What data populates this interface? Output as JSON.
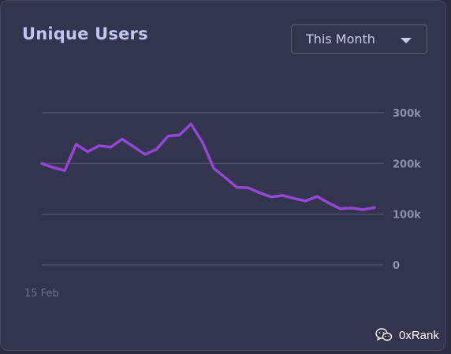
{
  "card": {
    "title": "Unique Users",
    "period_select": {
      "value": "This Month"
    }
  },
  "watermark": {
    "text": "0xRank",
    "icon": "wechat-icon"
  },
  "colors": {
    "line": "#9446d4",
    "grid": "#53566f",
    "card_bg": "#33344d"
  },
  "chart_data": {
    "type": "line",
    "title": "Unique Users",
    "x_tick_labels": [
      "15 Feb"
    ],
    "y_tick_labels": [
      "300k",
      "200k",
      "100k",
      "0"
    ],
    "y_ticks": [
      300000,
      200000,
      100000,
      0
    ],
    "ylim": [
      0,
      300000
    ],
    "grid": true,
    "y_axis_side": "right",
    "series": [
      {
        "values": [
          200000,
          192000,
          186000,
          238000,
          223000,
          235000,
          232000,
          248000,
          233000,
          218000,
          228000,
          254000,
          256000,
          278000,
          242000,
          190000,
          172000,
          153000,
          152000,
          142000,
          134000,
          137000,
          131000,
          126000,
          135000,
          122000,
          111000,
          112000,
          109000,
          113000
        ]
      }
    ]
  }
}
